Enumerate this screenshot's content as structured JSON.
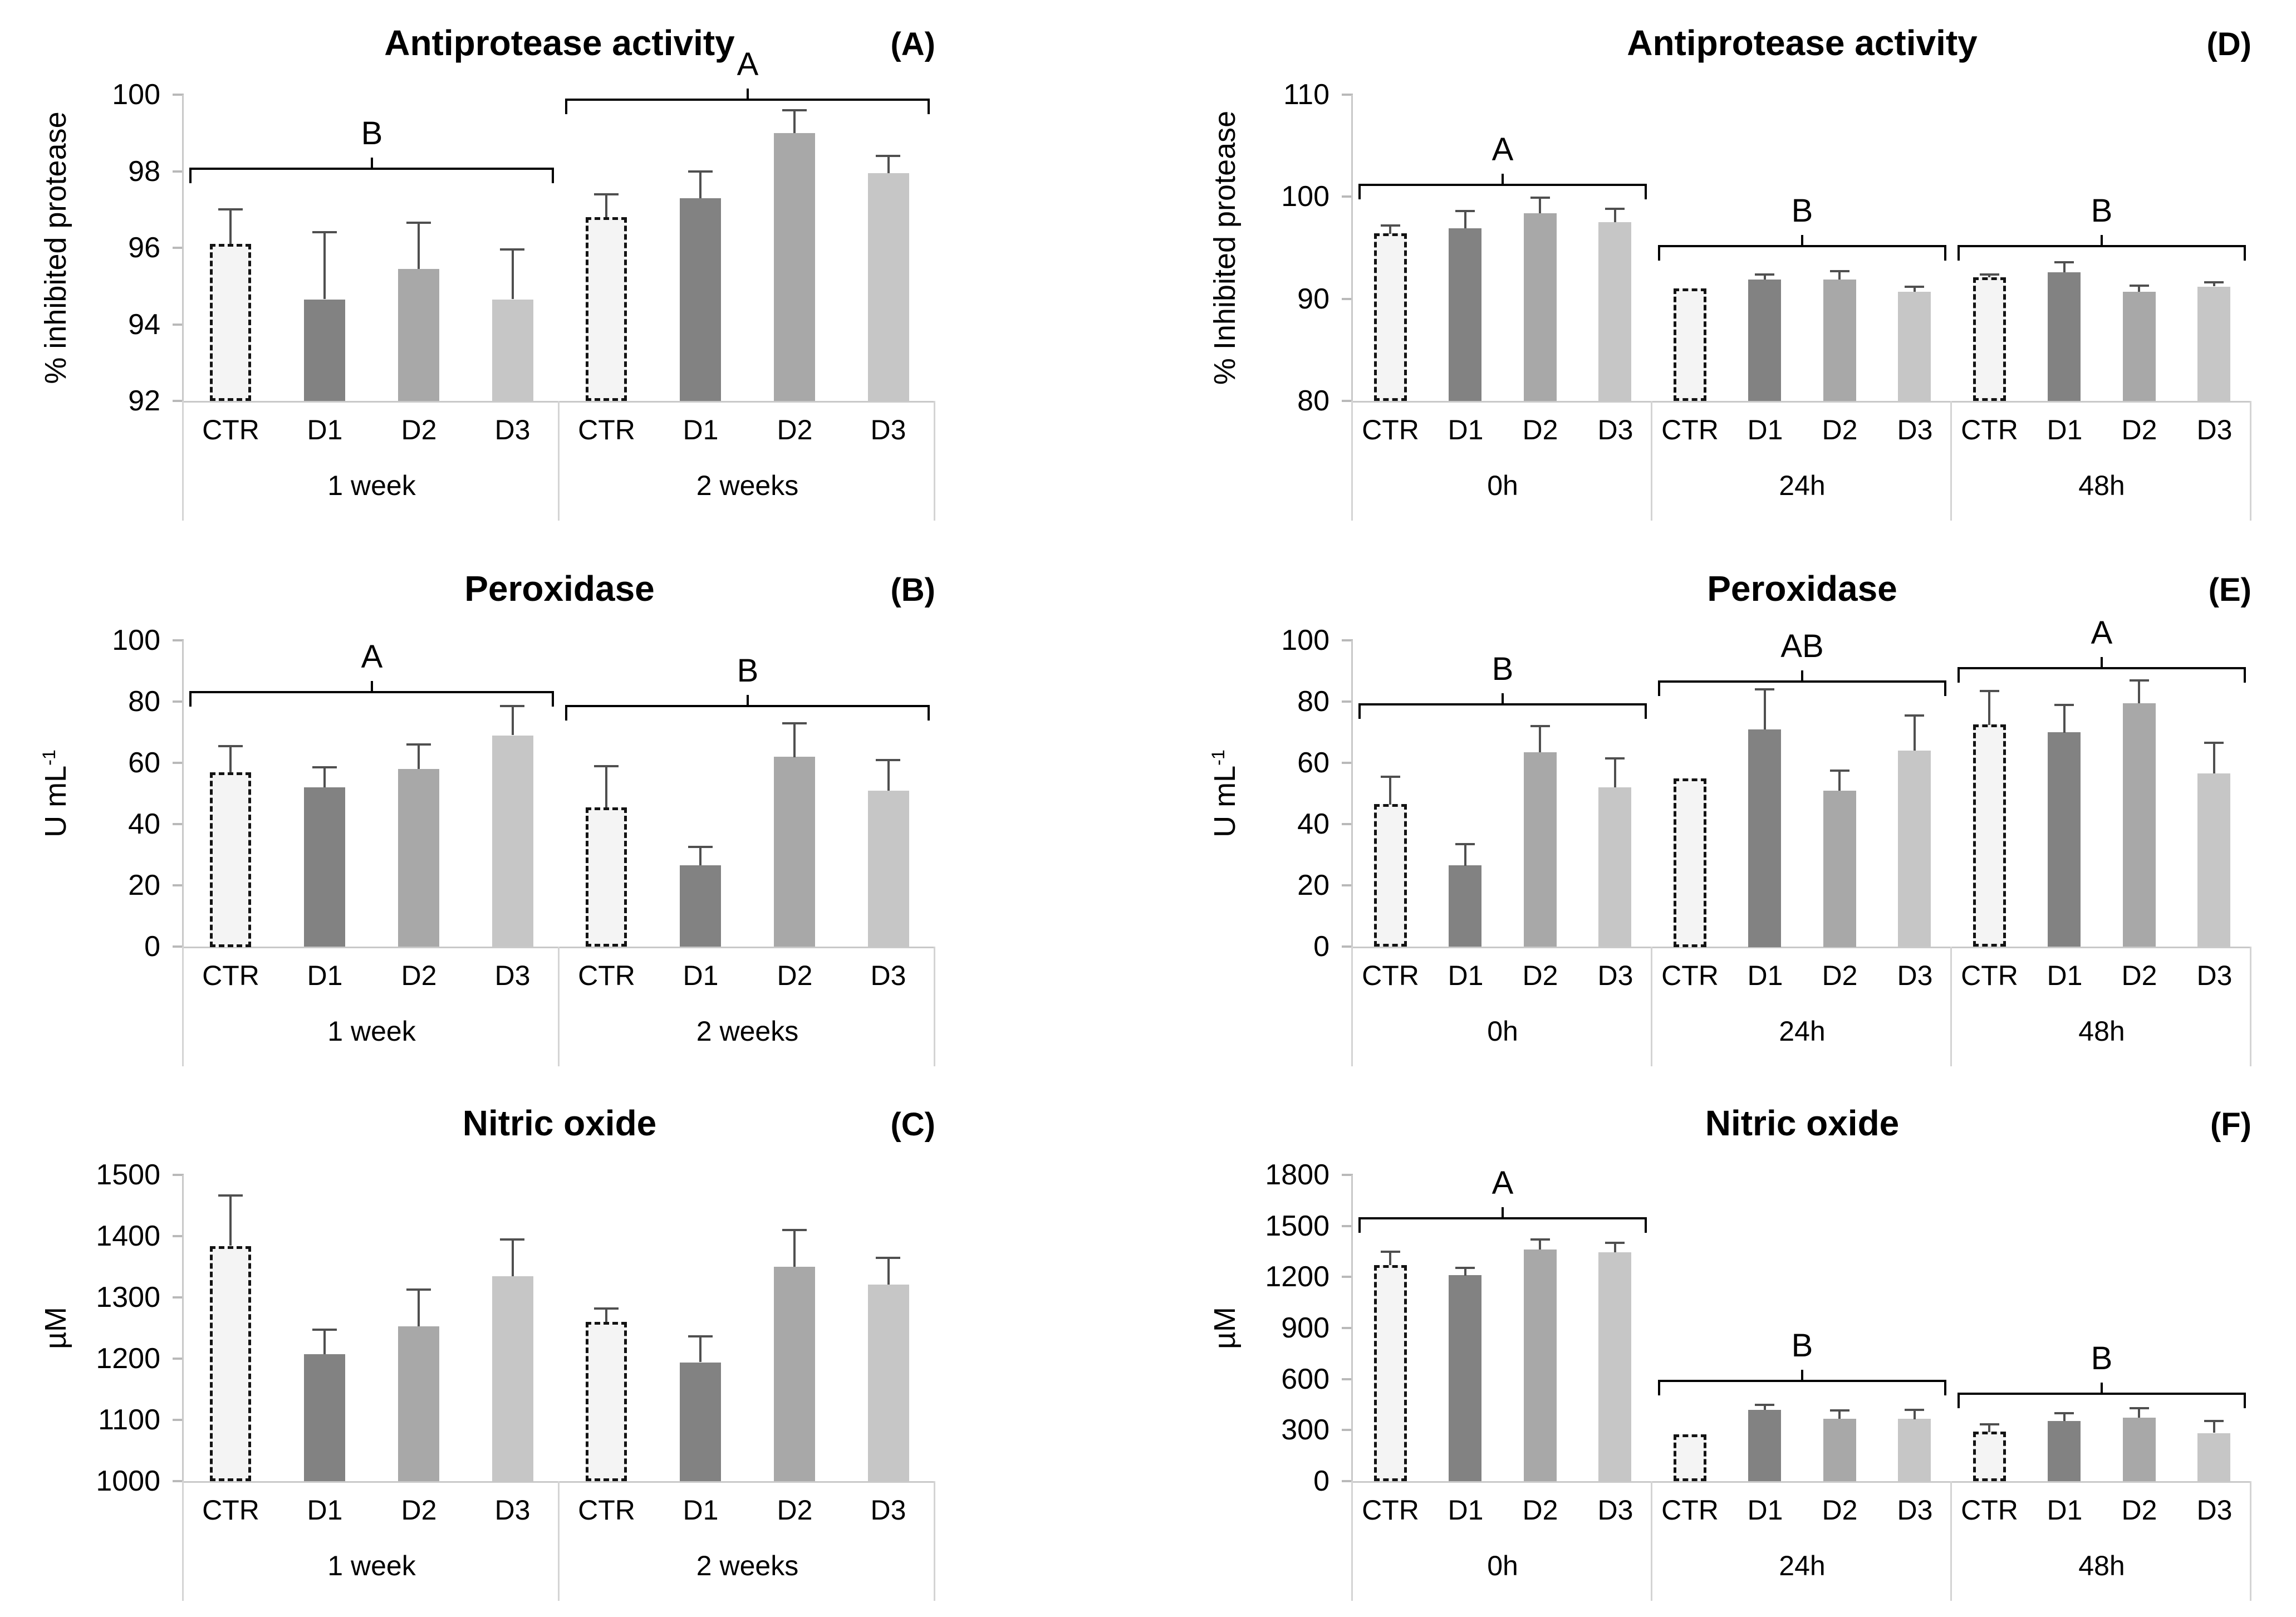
{
  "colors": {
    "ctr_fill": "#f4f4f4",
    "ctr_border": "#131313",
    "d1_fill": "#828282",
    "d2_fill": "#a8a8a8",
    "d3_fill": "#c6c6c6",
    "error_bar": "#4f4f4f",
    "axis_line": "#c9c9c9",
    "tick_mark": "#b9b9b9",
    "divider_line": "#d4d4d4",
    "bracket": "#000000",
    "text": "#000000"
  },
  "chart_data": [
    {
      "type": "bar",
      "panel_label": "(A)",
      "title": "Antiprotease activity",
      "ylabel_base": "% inhibited protease",
      "ylabel_sup": "",
      "ylim": [
        92,
        100
      ],
      "yticks": [
        92,
        94,
        96,
        98,
        100
      ],
      "grid": false,
      "groups": [
        {
          "label": "1 week",
          "bracket_letter": "B",
          "bracket_y": 98.1,
          "bars": [
            {
              "label": "CTR",
              "style": "ctr",
              "value": 96.1,
              "err": 0.9
            },
            {
              "label": "D1",
              "style": "d1",
              "value": 94.65,
              "err": 1.75
            },
            {
              "label": "D2",
              "style": "d2",
              "value": 95.45,
              "err": 1.2
            },
            {
              "label": "D3",
              "style": "d3",
              "value": 94.65,
              "err": 1.3
            }
          ]
        },
        {
          "label": "2 weeks",
          "bracket_letter": "A",
          "bracket_y": 99.9,
          "bars": [
            {
              "label": "CTR",
              "style": "ctr",
              "value": 96.8,
              "err": 0.6
            },
            {
              "label": "D1",
              "style": "d1",
              "value": 97.3,
              "err": 0.7
            },
            {
              "label": "D2",
              "style": "d2",
              "value": 99.0,
              "err": 0.6
            },
            {
              "label": "D3",
              "style": "d3",
              "value": 97.95,
              "err": 0.45
            }
          ]
        }
      ]
    },
    {
      "type": "bar",
      "panel_label": "(B)",
      "title": "Peroxidase",
      "ylabel_base": "U mL",
      "ylabel_sup": "-1",
      "ylim": [
        0,
        100
      ],
      "yticks": [
        0,
        20,
        40,
        60,
        80,
        100
      ],
      "grid": false,
      "groups": [
        {
          "label": "1 week",
          "bracket_letter": "A",
          "bracket_y": 83.5,
          "bars": [
            {
              "label": "CTR",
              "style": "ctr",
              "value": 57,
              "err": 8.5
            },
            {
              "label": "D1",
              "style": "d1",
              "value": 52,
              "err": 6.5
            },
            {
              "label": "D2",
              "style": "d2",
              "value": 58,
              "err": 8
            },
            {
              "label": "D3",
              "style": "d3",
              "value": 69,
              "err": 9.5
            }
          ]
        },
        {
          "label": "2 weeks",
          "bracket_letter": "B",
          "bracket_y": 79,
          "bars": [
            {
              "label": "CTR",
              "style": "ctr",
              "value": 45.5,
              "err": 13.5
            },
            {
              "label": "D1",
              "style": "d1",
              "value": 26.5,
              "err": 6
            },
            {
              "label": "D2",
              "style": "d2",
              "value": 62,
              "err": 11
            },
            {
              "label": "D3",
              "style": "d3",
              "value": 51,
              "err": 10
            }
          ]
        }
      ]
    },
    {
      "type": "bar",
      "panel_label": "(C)",
      "title": "Nitric oxide",
      "ylabel_base": "µM",
      "ylabel_sup": "",
      "ylim": [
        1000,
        1500
      ],
      "yticks": [
        1000,
        1100,
        1200,
        1300,
        1400,
        1500
      ],
      "grid": false,
      "groups": [
        {
          "label": "1 week",
          "bracket_letter": "",
          "bracket_y": null,
          "bars": [
            {
              "label": "CTR",
              "style": "ctr",
              "value": 1384,
              "err": 82
            },
            {
              "label": "D1",
              "style": "d1",
              "value": 1207,
              "err": 40
            },
            {
              "label": "D2",
              "style": "d2",
              "value": 1253,
              "err": 60
            },
            {
              "label": "D3",
              "style": "d3",
              "value": 1335,
              "err": 60
            }
          ]
        },
        {
          "label": "2 weeks",
          "bracket_letter": "",
          "bracket_y": null,
          "bars": [
            {
              "label": "CTR",
              "style": "ctr",
              "value": 1260,
              "err": 22
            },
            {
              "label": "D1",
              "style": "d1",
              "value": 1194,
              "err": 42
            },
            {
              "label": "D2",
              "style": "d2",
              "value": 1350,
              "err": 60
            },
            {
              "label": "D3",
              "style": "d3",
              "value": 1321,
              "err": 44
            }
          ]
        }
      ]
    },
    {
      "type": "bar",
      "panel_label": "(D)",
      "title": "Antiprotease activity",
      "ylabel_base": "% Inhibited protease",
      "ylabel_sup": "",
      "ylim": [
        80,
        110
      ],
      "yticks": [
        80,
        90,
        100,
        110
      ],
      "grid": false,
      "groups": [
        {
          "label": "0h",
          "bracket_letter": "A",
          "bracket_y": 101.3,
          "bars": [
            {
              "label": "CTR",
              "style": "ctr",
              "value": 96.4,
              "err": 0.8
            },
            {
              "label": "D1",
              "style": "d1",
              "value": 96.9,
              "err": 1.7
            },
            {
              "label": "D2",
              "style": "d2",
              "value": 98.4,
              "err": 1.5
            },
            {
              "label": "D3",
              "style": "d3",
              "value": 97.5,
              "err": 1.3
            }
          ]
        },
        {
          "label": "24h",
          "bracket_letter": "B",
          "bracket_y": 95.3,
          "bars": [
            {
              "label": "CTR",
              "style": "ctr",
              "value": 91.0,
              "err": 0
            },
            {
              "label": "D1",
              "style": "d1",
              "value": 91.9,
              "err": 0.5
            },
            {
              "label": "D2",
              "style": "d2",
              "value": 91.9,
              "err": 0.8
            },
            {
              "label": "D3",
              "style": "d3",
              "value": 90.7,
              "err": 0.5
            }
          ]
        },
        {
          "label": "48h",
          "bracket_letter": "B",
          "bracket_y": 95.3,
          "bars": [
            {
              "label": "CTR",
              "style": "ctr",
              "value": 92.1,
              "err": 0.3
            },
            {
              "label": "D1",
              "style": "d1",
              "value": 92.6,
              "err": 1.0
            },
            {
              "label": "D2",
              "style": "d2",
              "value": 90.7,
              "err": 0.6
            },
            {
              "label": "D3",
              "style": "d3",
              "value": 91.2,
              "err": 0.4
            }
          ]
        }
      ]
    },
    {
      "type": "bar",
      "panel_label": "(E)",
      "title": "Peroxidase",
      "ylabel_base": "U mL",
      "ylabel_sup": "-1",
      "ylim": [
        0,
        100
      ],
      "yticks": [
        0,
        20,
        40,
        60,
        80,
        100
      ],
      "grid": false,
      "groups": [
        {
          "label": "0h",
          "bracket_letter": "B",
          "bracket_y": 79.5,
          "bars": [
            {
              "label": "CTR",
              "style": "ctr",
              "value": 46.5,
              "err": 9
            },
            {
              "label": "D1",
              "style": "d1",
              "value": 26.5,
              "err": 7
            },
            {
              "label": "D2",
              "style": "d2",
              "value": 63.5,
              "err": 8.5
            },
            {
              "label": "D3",
              "style": "d3",
              "value": 52,
              "err": 9.5
            }
          ]
        },
        {
          "label": "24h",
          "bracket_letter": "AB",
          "bracket_y": 87,
          "bars": [
            {
              "label": "CTR",
              "style": "ctr",
              "value": 55,
              "err": 0
            },
            {
              "label": "D1",
              "style": "d1",
              "value": 71,
              "err": 13
            },
            {
              "label": "D2",
              "style": "d2",
              "value": 51,
              "err": 6.5
            },
            {
              "label": "D3",
              "style": "d3",
              "value": 64,
              "err": 11.5
            }
          ]
        },
        {
          "label": "48h",
          "bracket_letter": "A",
          "bracket_y": 91.3,
          "bars": [
            {
              "label": "CTR",
              "style": "ctr",
              "value": 72.5,
              "err": 11
            },
            {
              "label": "D1",
              "style": "d1",
              "value": 70,
              "err": 9
            },
            {
              "label": "D2",
              "style": "d2",
              "value": 79.5,
              "err": 7.5
            },
            {
              "label": "D3",
              "style": "d3",
              "value": 56.5,
              "err": 10
            }
          ]
        }
      ]
    },
    {
      "type": "bar",
      "panel_label": "(F)",
      "title": "Nitric oxide",
      "ylabel_base": "µM",
      "ylabel_sup": "",
      "ylim": [
        0,
        1800
      ],
      "yticks": [
        0,
        300,
        600,
        900,
        1200,
        1500,
        1800
      ],
      "grid": false,
      "groups": [
        {
          "label": "0h",
          "bracket_letter": "A",
          "bracket_y": 1550,
          "bars": [
            {
              "label": "CTR",
              "style": "ctr",
              "value": 1270,
              "err": 80
            },
            {
              "label": "D1",
              "style": "d1",
              "value": 1210,
              "err": 45
            },
            {
              "label": "D2",
              "style": "d2",
              "value": 1360,
              "err": 60
            },
            {
              "label": "D3",
              "style": "d3",
              "value": 1345,
              "err": 55
            }
          ]
        },
        {
          "label": "24h",
          "bracket_letter": "B",
          "bracket_y": 595,
          "bars": [
            {
              "label": "CTR",
              "style": "ctr",
              "value": 275,
              "err": 0
            },
            {
              "label": "D1",
              "style": "d1",
              "value": 420,
              "err": 30
            },
            {
              "label": "D2",
              "style": "d2",
              "value": 365,
              "err": 50
            },
            {
              "label": "D3",
              "style": "d3",
              "value": 365,
              "err": 55
            }
          ]
        },
        {
          "label": "48h",
          "bracket_letter": "B",
          "bracket_y": 520,
          "bars": [
            {
              "label": "CTR",
              "style": "ctr",
              "value": 290,
              "err": 45
            },
            {
              "label": "D1",
              "style": "d1",
              "value": 355,
              "err": 45
            },
            {
              "label": "D2",
              "style": "d2",
              "value": 373,
              "err": 55
            },
            {
              "label": "D3",
              "style": "d3",
              "value": 282,
              "err": 70
            }
          ]
        }
      ]
    }
  ]
}
